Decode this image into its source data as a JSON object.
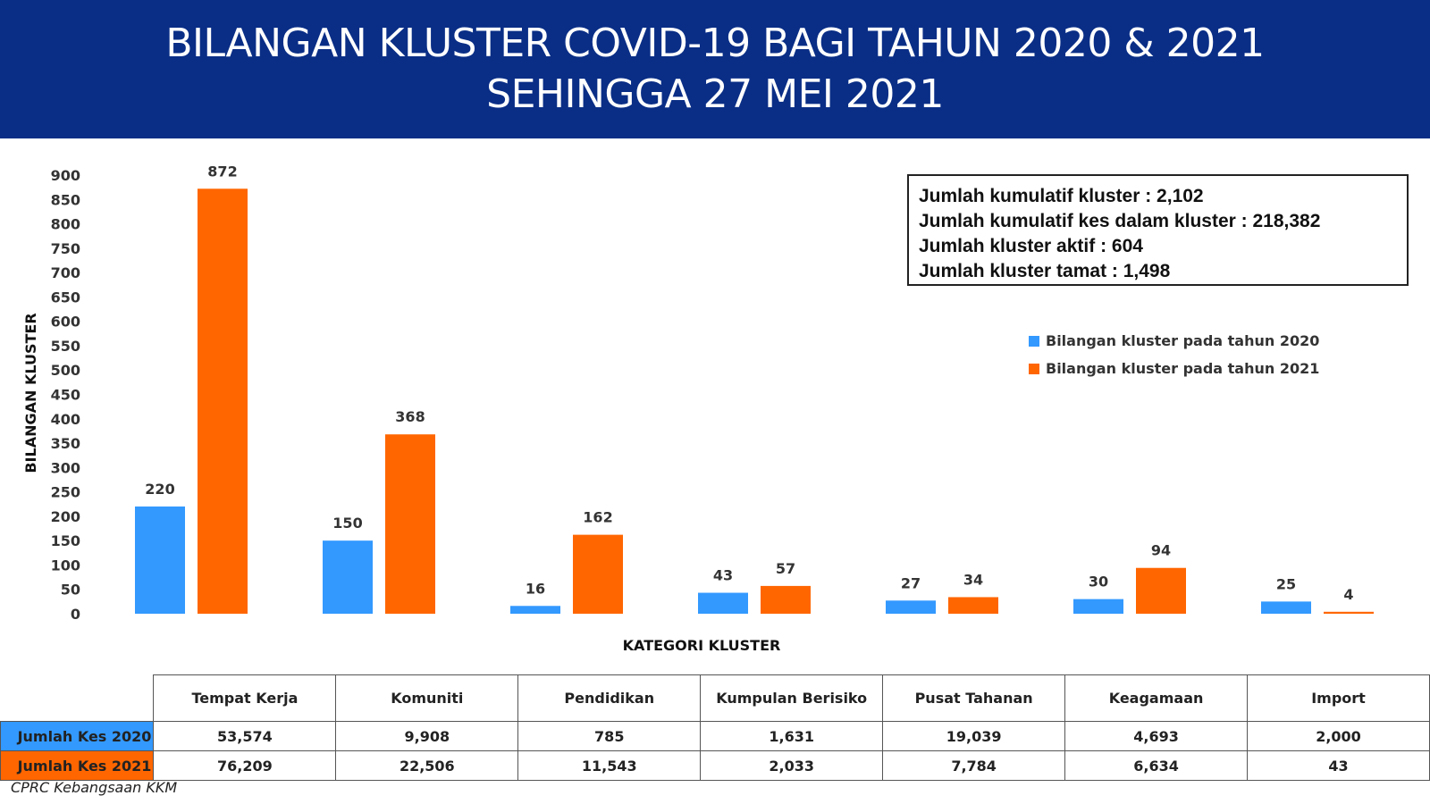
{
  "header": {
    "title_line1": "BILANGAN KLUSTER COVID-19 BAGI TAHUN 2020 & 2021",
    "title_line2": "SEHINGGA 27 MEI 2021"
  },
  "colors": {
    "banner": "#0a2e86",
    "series_2020": "#3399ff",
    "series_2021": "#ff6600"
  },
  "chart_data": {
    "type": "bar",
    "title": "BILANGAN KLUSTER COVID-19 BAGI TAHUN 2020 & 2021 SEHINGGA 27 MEI 2021",
    "xlabel": "KATEGORI KLUSTER",
    "ylabel": "BILANGAN KLUSTER",
    "ylim": [
      0,
      900
    ],
    "yticks": [
      "0",
      "50",
      "100",
      "150",
      "200",
      "250",
      "300",
      "350",
      "400",
      "450",
      "500",
      "550",
      "600",
      "650",
      "700",
      "750",
      "800",
      "850",
      "900"
    ],
    "categories": [
      "Tempat Kerja",
      "Komuniti",
      "Pendidikan",
      "Kumpulan Berisiko",
      "Pusat Tahanan",
      "Keagamaan",
      "Import"
    ],
    "series": [
      {
        "name": "Bilangan kluster pada tahun 2020",
        "values": [
          220,
          150,
          16,
          43,
          27,
          30,
          25
        ]
      },
      {
        "name": "Bilangan kluster pada tahun 2021",
        "values": [
          872,
          368,
          162,
          57,
          34,
          94,
          4
        ]
      }
    ],
    "legend": "right",
    "grid": false
  },
  "summary": {
    "lines": [
      "Jumlah kumulatif kluster : 2,102",
      "Jumlah kumulatif kes dalam kluster : 218,382",
      "Jumlah kluster aktif : 604",
      "Jumlah kluster tamat : 1,498"
    ]
  },
  "table": {
    "headers": [
      "Tempat Kerja",
      "Komuniti",
      "Pendidikan",
      "Kumpulan Berisiko",
      "Pusat Tahanan",
      "Keagamaan",
      "Import"
    ],
    "rows": [
      {
        "label": "Jumlah Kes 2020",
        "values": [
          "53,574",
          "9,908",
          "785",
          "1,631",
          "19,039",
          "4,693",
          "2,000"
        ]
      },
      {
        "label": "Jumlah Kes 2021",
        "values": [
          "76,209",
          "22,506",
          "11,543",
          "2,033",
          "7,784",
          "6,634",
          "43"
        ]
      }
    ]
  },
  "source": "CPRC Kebangsaan KKM"
}
